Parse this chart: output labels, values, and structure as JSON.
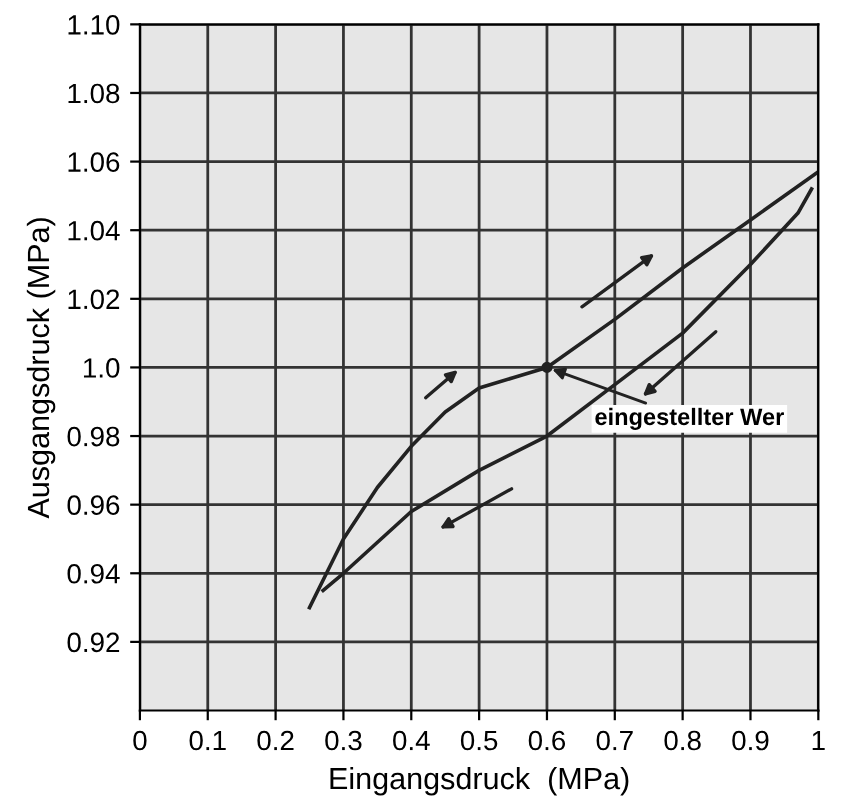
{
  "chart_data": {
    "type": "line",
    "xlabel": "Eingangsdruck  (MPa)",
    "ylabel": "Ausgangsdruck (MPa)",
    "series": [
      {
        "color": "#222222",
        "x": [
          0.25,
          0.3,
          0.35,
          0.4,
          0.45,
          0.5,
          0.55,
          0.6,
          0.7,
          0.8,
          0.9,
          1.0
        ],
        "values": [
          0.93,
          0.95,
          0.965,
          0.977,
          0.987,
          0.994,
          0.997,
          1.0,
          1.014,
          1.029,
          1.043,
          1.057
        ]
      },
      {
        "color": "#222222",
        "x": [
          0.99,
          0.97,
          0.9,
          0.8,
          0.7,
          0.6,
          0.5,
          0.4,
          0.3,
          0.27
        ],
        "values": [
          1.052,
          1.045,
          1.03,
          1.01,
          0.995,
          0.98,
          0.97,
          0.958,
          0.94,
          0.935
        ]
      }
    ],
    "xlim": [
      0,
      1.0
    ],
    "xticks": [
      0,
      0.1,
      0.2,
      0.3,
      0.4,
      0.5,
      0.6,
      0.7,
      0.8,
      0.9,
      {
        "value": 1.0,
        "label": "1"
      }
    ],
    "ylim": [
      0.9,
      1.1
    ],
    "yticks": [
      0.92,
      0.94,
      0.96,
      0.98,
      {
        "value": 1.0,
        "label": "1.0"
      },
      1.02,
      1.04,
      1.06,
      1.08,
      {
        "value": 1.1,
        "label": "1.10"
      }
    ],
    "annotations": [
      {
        "text": "eingestellter Wer",
        "x": 0.6,
        "y": 1.0
      }
    ],
    "grid": true,
    "marker": "none",
    "line_style": "solid"
  }
}
